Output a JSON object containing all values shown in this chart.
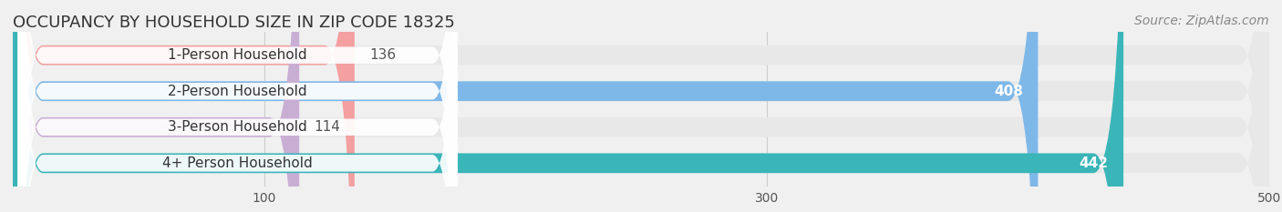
{
  "title": "OCCUPANCY BY HOUSEHOLD SIZE IN ZIP CODE 18325",
  "source": "Source: ZipAtlas.com",
  "categories": [
    "1-Person Household",
    "2-Person Household",
    "3-Person Household",
    "4+ Person Household"
  ],
  "values": [
    136,
    408,
    114,
    442
  ],
  "bar_colors": [
    "#f4a0a0",
    "#7eb8e8",
    "#c9aed4",
    "#3ab5b8"
  ],
  "label_bg_color": "#ffffff",
  "background_color": "#f0f0f0",
  "bar_background_color": "#e8e8e8",
  "xlim": [
    0,
    500
  ],
  "xticks": [
    100,
    300,
    500
  ],
  "bar_height": 0.55,
  "title_fontsize": 13,
  "source_fontsize": 10,
  "label_fontsize": 11,
  "value_fontsize": 11,
  "tick_fontsize": 10,
  "grid_color": "#cccccc"
}
